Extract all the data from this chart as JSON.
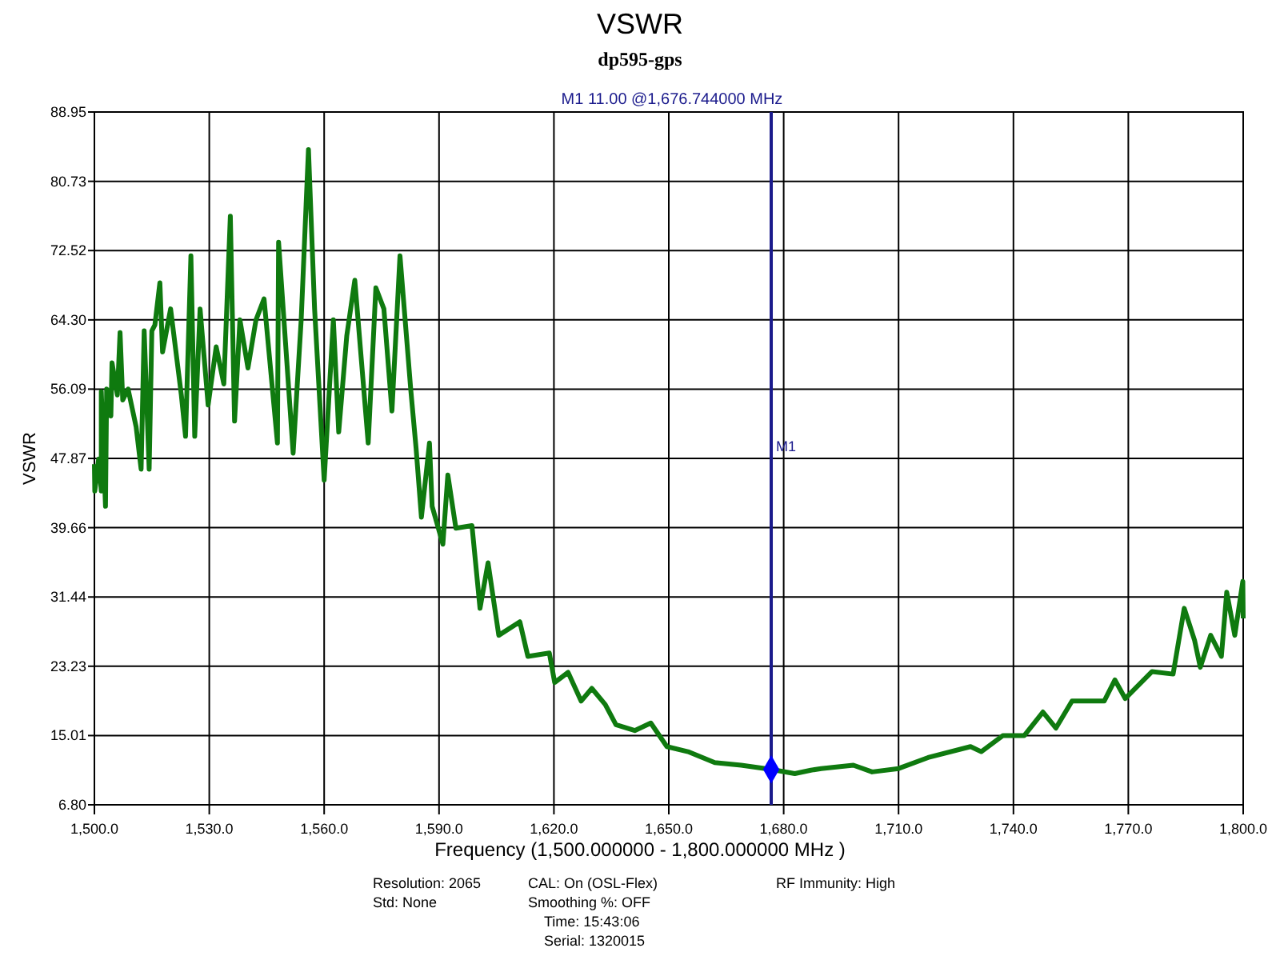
{
  "chart_data": {
    "type": "line",
    "title": "VSWR",
    "subtitle": "dp595-gps",
    "xlabel": "Frequency (1,500.000000 - 1,800.000000 MHz )",
    "ylabel": "VSWR",
    "xlim": [
      1500,
      1800
    ],
    "xticks": [
      {
        "value": 1500,
        "label": "1,500.0"
      },
      {
        "value": 1530,
        "label": "1,530.0"
      },
      {
        "value": 1560,
        "label": "1,560.0"
      },
      {
        "value": 1590,
        "label": "1,590.0"
      },
      {
        "value": 1620,
        "label": "1,620.0"
      },
      {
        "value": 1650,
        "label": "1,650.0"
      },
      {
        "value": 1680,
        "label": "1,680.0"
      },
      {
        "value": 1710,
        "label": "1,710.0"
      },
      {
        "value": 1740,
        "label": "1,740.0"
      },
      {
        "value": 1770,
        "label": "1,770.0"
      },
      {
        "value": 1800,
        "label": "1,800.0"
      }
    ],
    "ylim": [
      6.8,
      88.95
    ],
    "yticks": [
      {
        "value": 6.8,
        "label": "6.80"
      },
      {
        "value": 15.01,
        "label": "15.01"
      },
      {
        "value": 23.23,
        "label": "23.23"
      },
      {
        "value": 31.44,
        "label": "31.44"
      },
      {
        "value": 39.66,
        "label": "39.66"
      },
      {
        "value": 47.87,
        "label": "47.87"
      },
      {
        "value": 56.09,
        "label": "56.09"
      },
      {
        "value": 64.3,
        "label": "64.30"
      },
      {
        "value": 72.52,
        "label": "72.52"
      },
      {
        "value": 80.73,
        "label": "80.73"
      },
      {
        "value": 88.95,
        "label": "88.95"
      }
    ],
    "grid": true,
    "series": [
      {
        "color": "#0f7a0f",
        "marker": "none",
        "x": [
          1500.0,
          1500.1,
          1501.1,
          1501.8,
          1501.8,
          1502.9,
          1503.2,
          1504.3,
          1504.6,
          1506.0,
          1506.7,
          1507.4,
          1508.8,
          1510.9,
          1512.2,
          1513.0,
          1514.3,
          1515.0,
          1515.8,
          1517.1,
          1517.8,
          1519.9,
          1522.7,
          1523.8,
          1525.2,
          1526.2,
          1527.6,
          1529.7,
          1531.8,
          1533.8,
          1535.5,
          1536.6,
          1538.0,
          1540.1,
          1542.2,
          1544.3,
          1547.8,
          1548.1,
          1551.9,
          1554.0,
          1555.9,
          1557.5,
          1560.0,
          1562.4,
          1563.8,
          1565.9,
          1568.0,
          1571.5,
          1573.5,
          1575.6,
          1577.7,
          1579.8,
          1582.6,
          1584.0,
          1585.4,
          1587.5,
          1588.2,
          1591.0,
          1592.3,
          1594.4,
          1598.6,
          1600.7,
          1602.8,
          1605.6,
          1611.1,
          1613.2,
          1618.8,
          1620.2,
          1623.7,
          1627.1,
          1629.9,
          1633.4,
          1636.2,
          1641.1,
          1645.3,
          1649.5,
          1655.0,
          1662.0,
          1668.9,
          1676.7,
          1682.9,
          1687.1,
          1689.8,
          1698.2,
          1703.1,
          1710.0,
          1717.7,
          1728.8,
          1731.6,
          1737.2,
          1742.8,
          1747.7,
          1751.1,
          1755.3,
          1763.7,
          1766.5,
          1769.2,
          1776.2,
          1781.7,
          1784.6,
          1787.3,
          1788.8,
          1791.5,
          1794.3,
          1795.7,
          1797.8,
          1799.9,
          1800.0
        ],
        "values": [
          47.2,
          44.0,
          47.8,
          44.0,
          55.8,
          42.2,
          56.1,
          52.9,
          59.2,
          55.4,
          62.8,
          54.8,
          56.1,
          51.6,
          46.6,
          63.0,
          46.6,
          63.0,
          63.7,
          68.7,
          60.5,
          65.6,
          55.4,
          50.5,
          71.9,
          50.5,
          65.6,
          54.2,
          61.1,
          56.7,
          76.6,
          52.3,
          64.3,
          58.6,
          64.3,
          66.8,
          49.7,
          73.5,
          48.5,
          64.3,
          84.5,
          65.6,
          45.3,
          64.3,
          51.0,
          62.4,
          69.0,
          49.7,
          68.1,
          65.6,
          53.5,
          71.9,
          56.1,
          49.1,
          40.9,
          49.7,
          42.2,
          37.7,
          45.9,
          39.6,
          39.9,
          30.1,
          35.5,
          26.9,
          28.5,
          24.4,
          24.8,
          21.3,
          22.5,
          19.1,
          20.6,
          18.7,
          16.3,
          15.6,
          16.5,
          13.7,
          13.1,
          11.8,
          11.5,
          11.0,
          10.5,
          10.9,
          11.1,
          11.5,
          10.7,
          11.1,
          12.4,
          13.7,
          13.1,
          15.0,
          15.0,
          17.8,
          15.9,
          19.1,
          19.1,
          21.6,
          19.4,
          22.6,
          22.3,
          30.1,
          26.3,
          23.1,
          26.9,
          24.4,
          32.0,
          26.9,
          33.3,
          28.9
        ]
      },
      {
        "type": "scatter",
        "color": "#0000ff",
        "marker": "diamond",
        "x": [
          1676.744
        ],
        "values": [
          11.0
        ]
      }
    ],
    "ref_lines": [
      {
        "axis": "x",
        "value": 1676.744,
        "label": "M1",
        "color": "#1a1a8c"
      }
    ],
    "annotations": [
      "M1  11.00 @1,676.744000 MHz",
      "Resolution: 2065",
      "Std: None",
      "CAL: On (OSL-Flex)",
      "Smoothing %:  OFF",
      "Time: 15:43:06",
      "Serial: 1320015",
      "RF Immunity: High"
    ]
  }
}
